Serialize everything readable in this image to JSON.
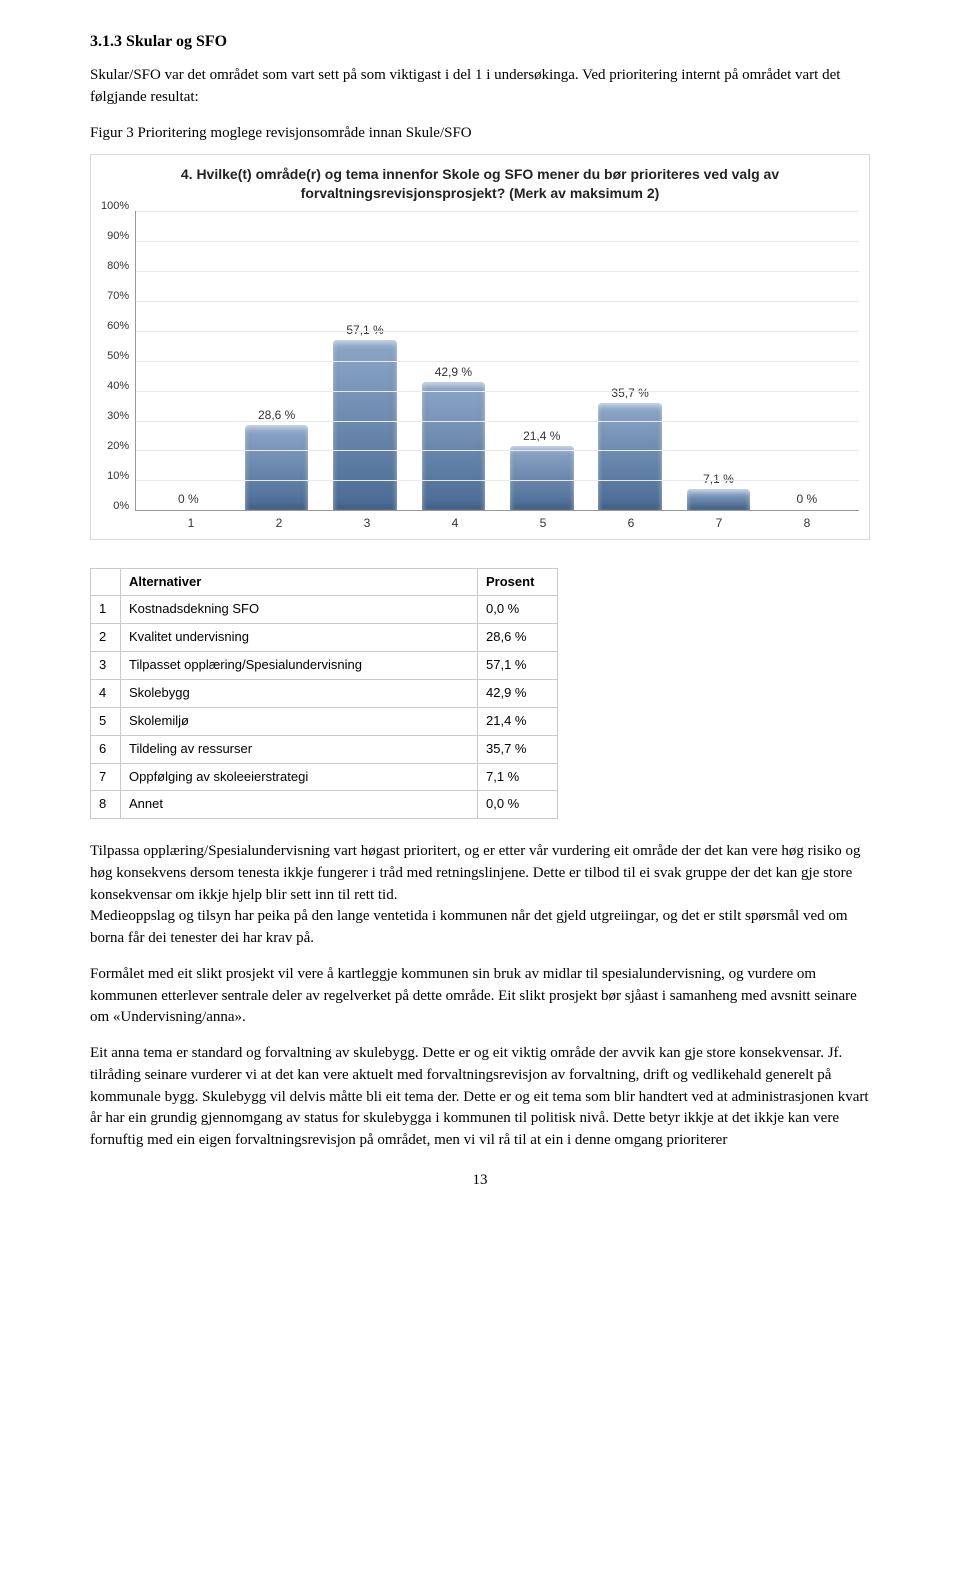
{
  "heading": "3.1.3  Skular og SFO",
  "intro_para": "Skular/SFO var det området som vart sett på som viktigast i del 1 i undersøkinga. Ved prioritering internt på området vart det følgjande resultat:",
  "figure_label": "Figur 3      Prioritering moglege revisjonsområde innan Skule/SFO",
  "chart": {
    "title_line1": "4. Hvilke(t) område(r) og tema innenfor Skole og SFO mener du bør prioriteres ved valg av",
    "title_line2": "forvaltningsrevisjonsprosjekt? (Merk av maksimum 2)",
    "type": "bar",
    "ylim": [
      0,
      100
    ],
    "ytick_step": 10,
    "y_ticks": [
      "100%",
      "90%",
      "80%",
      "70%",
      "60%",
      "50%",
      "40%",
      "30%",
      "20%",
      "10%",
      "0%"
    ],
    "grid_color": "#eaeaea",
    "axis_color": "#999999",
    "bar_gradient_top": "#8da7c8",
    "bar_gradient_bottom": "#496a94",
    "background_color": "#ffffff",
    "label_fontsize": 12,
    "categories": [
      "1",
      "2",
      "3",
      "4",
      "5",
      "6",
      "7",
      "8"
    ],
    "values": [
      0,
      28.6,
      57.1,
      42.9,
      21.4,
      35.7,
      7.1,
      0
    ],
    "value_labels": [
      "0 %",
      "28,6 %",
      "57,1 %",
      "42,9 %",
      "21,4 %",
      "35,7 %",
      "7,1 %",
      "0 %"
    ],
    "bar_width": 0.72
  },
  "table": {
    "columns": [
      "",
      "Alternativer",
      "Prosent"
    ],
    "rows": [
      [
        "1",
        "Kostnadsdekning SFO",
        "0,0 %"
      ],
      [
        "2",
        "Kvalitet undervisning",
        "28,6 %"
      ],
      [
        "3",
        "Tilpasset opplæring/Spesialundervisning",
        "57,1 %"
      ],
      [
        "4",
        "Skolebygg",
        "42,9 %"
      ],
      [
        "5",
        "Skolemiljø",
        "21,4 %"
      ],
      [
        "6",
        "Tildeling av ressurser",
        "35,7 %"
      ],
      [
        "7",
        "Oppfølging av skoleeierstrategi",
        "7,1 %"
      ],
      [
        "8",
        "Annet",
        "0,0 %"
      ]
    ]
  },
  "body_paragraphs": [
    "Tilpassa opplæring/Spesialundervisning vart høgast prioritert, og er etter vår vurdering eit område der det kan vere høg risiko og høg konsekvens dersom tenesta ikkje fungerer i tråd med retningslinjene. Dette er tilbod til ei svak gruppe der det kan gje store konsekvensar om ikkje hjelp blir sett inn til rett tid.",
    "Medieoppslag og tilsyn har peika på den lange ventetida i kommunen når det gjeld utgreiingar, og det er stilt spørsmål ved om borna får dei tenester dei har krav på.",
    "Formålet med eit slikt prosjekt vil vere å kartleggje kommunen sin bruk av midlar til spesialundervisning, og vurdere om kommunen etterlever sentrale deler av regelverket på dette område. Eit slikt prosjekt bør sjåast i samanheng med avsnitt seinare om «Undervisning/anna».",
    "Eit anna tema er standard og forvaltning av skulebygg. Dette er og eit viktig område der avvik kan gje store konsekvensar. Jf. tilråding seinare vurderer vi at det kan vere aktuelt med forvaltningsrevisjon av forvaltning, drift og vedlikehald generelt på kommunale bygg. Skulebygg vil delvis måtte bli eit tema der. Dette er og eit tema som blir handtert ved at administrasjonen kvart år har ein grundig gjennomgang av status for skulebygga i kommunen til politisk nivå. Dette betyr ikkje at det ikkje kan vere fornuftig med ein eigen forvaltningsrevisjon på området, men vi vil rå til at ein i denne omgang prioriterer"
  ],
  "page_number": "13"
}
